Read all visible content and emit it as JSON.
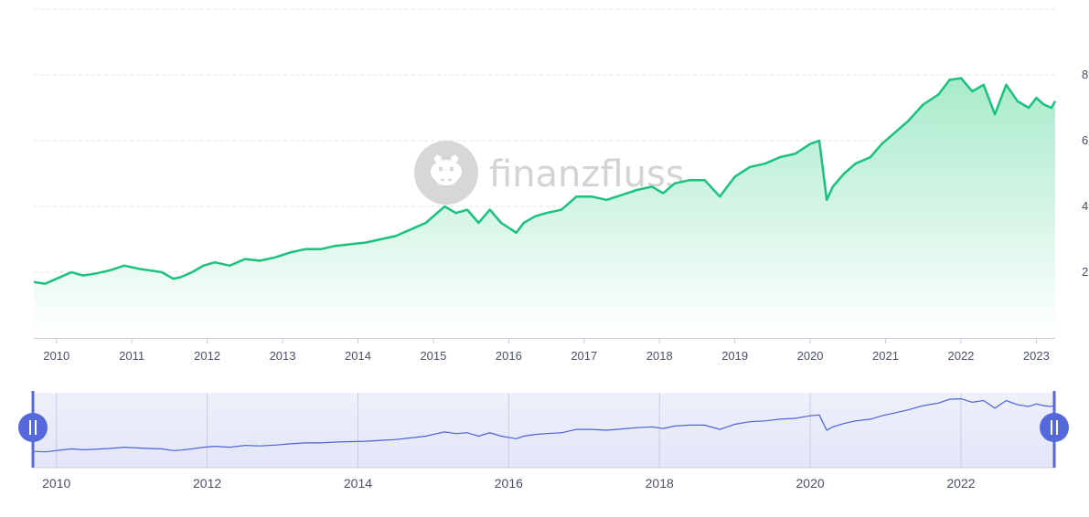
{
  "watermark": {
    "text": "finanzfluss",
    "icon": "hippo-logo-icon"
  },
  "colors": {
    "line": "#19c27d",
    "area_top": "#a9ebcc",
    "area_bottom": "#ffffff",
    "navigator_line": "#4a63d8",
    "navigator_fill": "#e6e9f8",
    "handle": "#5569dc",
    "grid": "#e3e6ec"
  },
  "chart_data": {
    "type": "area",
    "title": "",
    "xlabel": "",
    "ylabel": "",
    "x_ticks": [
      "2010",
      "2011",
      "2012",
      "2013",
      "2014",
      "2015",
      "2016",
      "2017",
      "2018",
      "2019",
      "2020",
      "2021",
      "2022",
      "2023"
    ],
    "y_ticks": [
      "2",
      "4",
      "6",
      "8"
    ],
    "xlim": [
      2009.7,
      2023.25
    ],
    "ylim": [
      0,
      10
    ],
    "grid": true,
    "legend": "none",
    "x": [
      2009.7,
      2009.85,
      2010.0,
      2010.2,
      2010.35,
      2010.5,
      2010.7,
      2010.9,
      2011.1,
      2011.25,
      2011.4,
      2011.55,
      2011.65,
      2011.8,
      2011.95,
      2012.1,
      2012.3,
      2012.5,
      2012.7,
      2012.9,
      2013.1,
      2013.3,
      2013.5,
      2013.7,
      2013.9,
      2014.1,
      2014.3,
      2014.5,
      2014.7,
      2014.9,
      2015.0,
      2015.15,
      2015.3,
      2015.45,
      2015.6,
      2015.75,
      2015.9,
      2016.1,
      2016.2,
      2016.35,
      2016.5,
      2016.7,
      2016.9,
      2017.1,
      2017.3,
      2017.5,
      2017.7,
      2017.9,
      2018.05,
      2018.2,
      2018.4,
      2018.6,
      2018.8,
      2018.9,
      2019.0,
      2019.2,
      2019.4,
      2019.6,
      2019.8,
      2020.0,
      2020.12,
      2020.22,
      2020.3,
      2020.45,
      2020.6,
      2020.8,
      2020.95,
      2021.1,
      2021.3,
      2021.5,
      2021.7,
      2021.85,
      2022.0,
      2022.15,
      2022.3,
      2022.45,
      2022.6,
      2022.75,
      2022.9,
      2023.0,
      2023.1,
      2023.2,
      2023.25
    ],
    "values": [
      1.7,
      1.65,
      1.8,
      2.0,
      1.9,
      1.95,
      2.05,
      2.2,
      2.1,
      2.05,
      2.0,
      1.8,
      1.85,
      2.0,
      2.2,
      2.3,
      2.2,
      2.4,
      2.35,
      2.45,
      2.6,
      2.7,
      2.7,
      2.8,
      2.85,
      2.9,
      3.0,
      3.1,
      3.3,
      3.5,
      3.7,
      4.0,
      3.8,
      3.9,
      3.5,
      3.9,
      3.5,
      3.2,
      3.5,
      3.7,
      3.8,
      3.9,
      4.3,
      4.3,
      4.2,
      4.35,
      4.5,
      4.6,
      4.4,
      4.7,
      4.8,
      4.8,
      4.3,
      4.6,
      4.9,
      5.2,
      5.3,
      5.5,
      5.6,
      5.9,
      6.0,
      4.2,
      4.6,
      5.0,
      5.3,
      5.5,
      5.9,
      6.2,
      6.6,
      7.1,
      7.4,
      7.85,
      7.9,
      7.5,
      7.7,
      6.8,
      7.7,
      7.2,
      7.0,
      7.3,
      7.1,
      7.0,
      7.2
    ],
    "navigator": {
      "x_ticks": [
        "2010",
        "2012",
        "2014",
        "2016",
        "2018",
        "2020",
        "2022"
      ],
      "range": [
        2009.7,
        2023.25
      ]
    }
  }
}
